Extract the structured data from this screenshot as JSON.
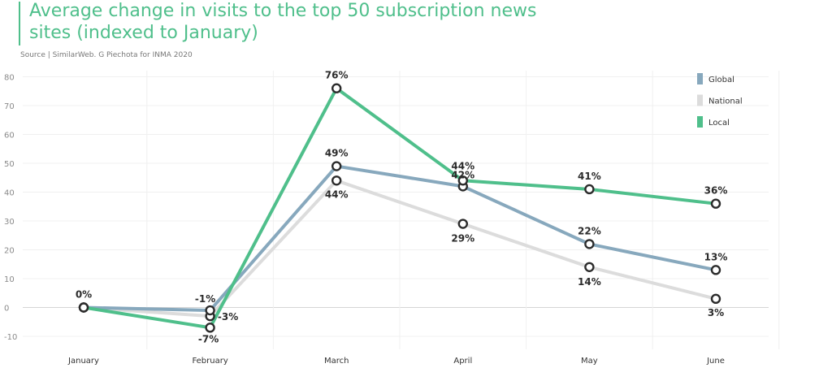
{
  "title": "Average change in visits to the top 50 subscription news sites (indexed to January)",
  "source": "Source | SimilarWeb. G Piechota for INMA 2020",
  "colors": {
    "title": "#4fbf8b",
    "global": "#87a8bd",
    "national": "#dcdcdc",
    "local": "#4fbf8b"
  },
  "chart_data": {
    "type": "line",
    "title": "Average change in visits to the top 50 subscription news sites (indexed to January)",
    "categories": [
      "January",
      "February",
      "March",
      "April",
      "May",
      "June"
    ],
    "series": [
      {
        "name": "Global",
        "values": [
          0,
          -1,
          49,
          42,
          22,
          13
        ],
        "labels": [
          "",
          "-1%",
          "49%",
          "42%",
          "22%",
          "13%"
        ]
      },
      {
        "name": "National",
        "values": [
          0,
          -3,
          44,
          29,
          14,
          3
        ],
        "labels": [
          "",
          "-3%",
          "44%",
          "29%",
          "14%",
          "3%"
        ]
      },
      {
        "name": "Local",
        "values": [
          0,
          -7,
          76,
          44,
          41,
          36
        ],
        "labels": [
          "0%",
          "-7%",
          "76%",
          "44%",
          "41%",
          "36%"
        ]
      }
    ],
    "yticks": [
      "-10",
      "0",
      "10",
      "20",
      "30",
      "40",
      "50",
      "60",
      "70",
      "80"
    ],
    "ylim": [
      -10,
      80
    ],
    "grid": true,
    "legend_position": "top-right"
  }
}
